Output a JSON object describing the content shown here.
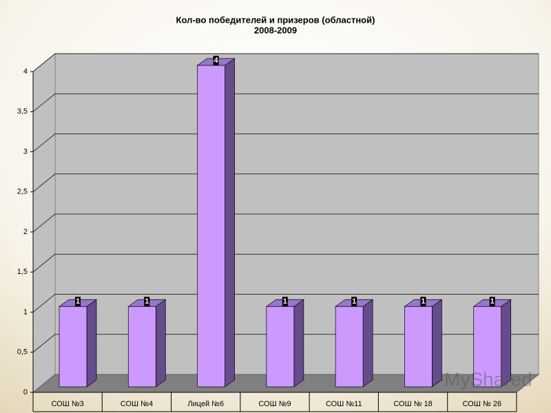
{
  "chart_data": {
    "type": "bar3d",
    "title": "Кол-во победителей и призеров (областной)",
    "subtitle": "2008-2009",
    "categories": [
      "СОШ №3",
      "СОШ №4",
      "Лицей №6",
      "СОШ №9",
      "СОШ №11",
      "СОШ № 18",
      "СОШ № 26"
    ],
    "values": [
      1,
      1,
      4,
      1,
      1,
      1,
      1
    ],
    "color": "#cc99ff",
    "ylim": [
      0,
      4
    ],
    "yticks": [
      0,
      {
        "value": 0.5,
        "label": "0,5"
      },
      1,
      {
        "value": 1.5,
        "label": "1,5"
      },
      2,
      {
        "value": 2.5,
        "label": "2,5"
      },
      3,
      {
        "value": 3.5,
        "label": "3,5"
      },
      4
    ],
    "grid": true,
    "watermark": "MyShared"
  }
}
